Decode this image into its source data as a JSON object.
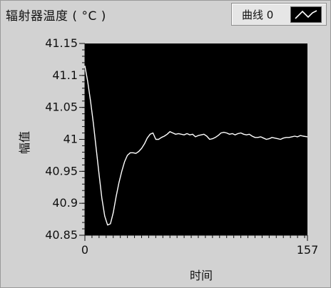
{
  "window": {
    "title": "辐射器温度 ( °C )"
  },
  "legend": {
    "label": "曲线 0",
    "swatch_icon": "line-curve-icon"
  },
  "colors": {
    "plot_background": "#000000",
    "series_line": "#ffffff",
    "panel_background": "#d2d2d2"
  },
  "chart_data": {
    "type": "line",
    "title": "辐射器温度 ( °C )",
    "xlabel": "时间",
    "ylabel": "幅值",
    "xlim": [
      0,
      157
    ],
    "ylim": [
      40.85,
      41.15
    ],
    "x_ticks": [
      "0",
      "157"
    ],
    "y_ticks": [
      "41.15",
      "41.1",
      "41.05",
      "41",
      "40.95",
      "40.9",
      "40.85"
    ],
    "grid": false,
    "legend_position": "top-right",
    "series": [
      {
        "name": "曲线 0",
        "x": [
          0,
          2,
          4,
          6,
          8,
          10,
          12,
          14,
          16,
          18,
          20,
          22,
          24,
          26,
          28,
          30,
          32,
          34,
          36,
          38,
          40,
          42,
          44,
          46,
          48,
          50,
          52,
          54,
          56,
          58,
          60,
          62,
          64,
          66,
          68,
          70,
          72,
          74,
          76,
          78,
          80,
          82,
          84,
          86,
          88,
          90,
          92,
          94,
          96,
          98,
          100,
          102,
          104,
          106,
          108,
          110,
          112,
          114,
          116,
          118,
          120,
          122,
          124,
          126,
          128,
          130,
          132,
          134,
          136,
          138,
          140,
          142,
          144,
          146,
          148,
          150,
          152,
          154,
          157
        ],
        "y": [
          41.115,
          41.09,
          41.06,
          41.025,
          40.985,
          40.945,
          40.908,
          40.88,
          40.866,
          40.868,
          40.885,
          40.91,
          40.932,
          40.95,
          40.965,
          40.975,
          40.979,
          40.979,
          40.978,
          40.981,
          40.986,
          40.993,
          41.002,
          41.008,
          41.01,
          41.0,
          41.0,
          41.003,
          41.005,
          41.008,
          41.012,
          41.01,
          41.008,
          41.009,
          41.008,
          41.007,
          41.009,
          41.007,
          41.008,
          41.004,
          41.006,
          41.007,
          41.008,
          41.005,
          41.0,
          41.001,
          41.003,
          41.006,
          41.01,
          41.011,
          41.01,
          41.008,
          41.009,
          41.007,
          41.009,
          41.01,
          41.008,
          41.007,
          41.008,
          41.005,
          41.003,
          41.003,
          41.004,
          41.002,
          41.0,
          41.001,
          41.003,
          41.002,
          41.001,
          41.0,
          41.002,
          41.003,
          41.003,
          41.004,
          41.005,
          41.004,
          41.006,
          41.005,
          41.004
        ]
      }
    ]
  }
}
